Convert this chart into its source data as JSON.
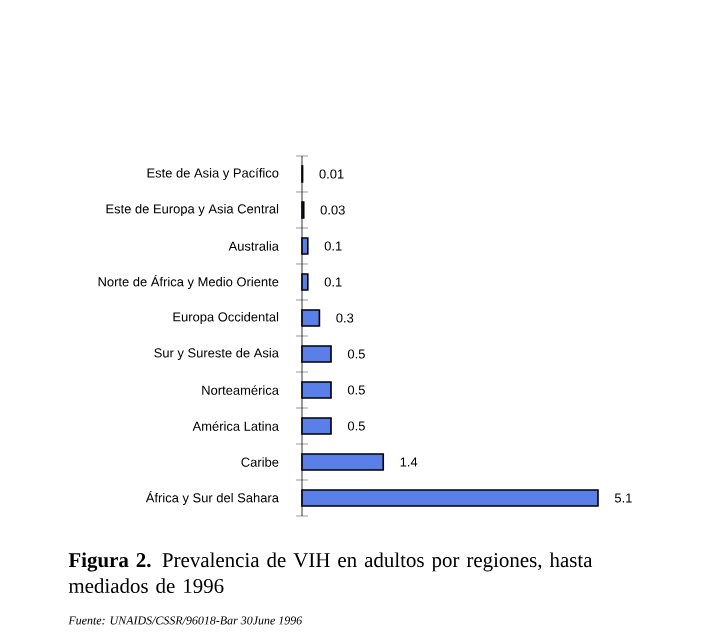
{
  "chart_data": {
    "type": "bar",
    "orientation": "horizontal",
    "title": "**Figura 2.** Prevalencia de VIH en adultos por regiones, hasta mediados de 1996",
    "annotations": [
      "Fuente: UNAIDS/CSSR/96018-Bar 30June 1996"
    ],
    "categories": [
      "Este de Asia y Pacífico",
      "Este de Europa y Asia Central",
      "Australia",
      "Norte de África y Medio Oriente",
      "Europa Occidental",
      "Sur y Sureste de Asia",
      "Norteamérica",
      "América Latina",
      "Caribe",
      "África y Sur del Sahara"
    ],
    "values": [
      0.01,
      0.03,
      0.1,
      0.1,
      0.3,
      0.5,
      0.5,
      0.5,
      1.4,
      5.1
    ],
    "color": "#5b7fe8",
    "data_labels": true
  }
}
